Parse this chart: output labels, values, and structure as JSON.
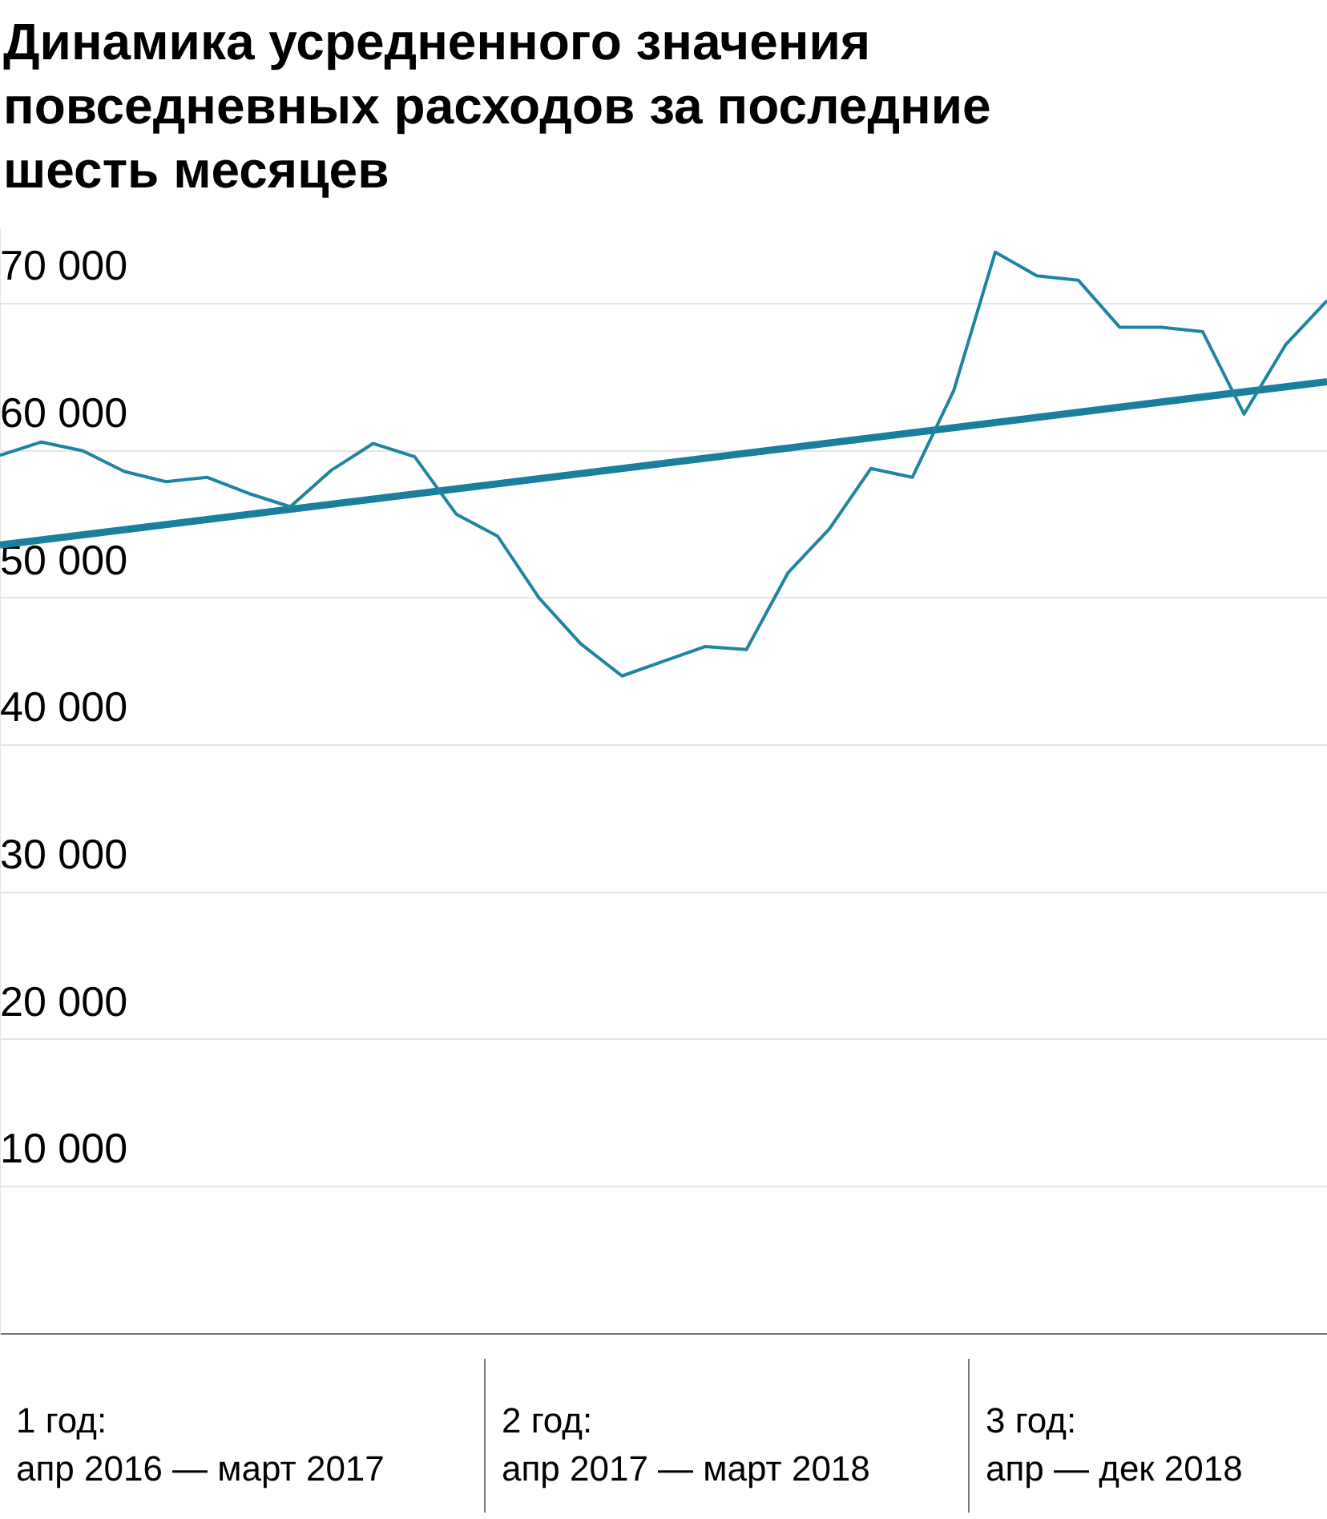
{
  "chart_data": {
    "type": "line",
    "title": "Динамика усредненного значения повседневных расходов за последние шесть месяцев",
    "categories": [
      null,
      null,
      null,
      null,
      null,
      null,
      null,
      null,
      null,
      null,
      null,
      null,
      null,
      null,
      null,
      null,
      null,
      null,
      null,
      null,
      null,
      null,
      null,
      null,
      null,
      null,
      null,
      null,
      null,
      null,
      null,
      null,
      null
    ],
    "series": [
      {
        "type": "line",
        "color": "#1f84a0",
        "values": [
          59700,
          60600,
          60000,
          58600,
          57900,
          58200,
          57100,
          56200,
          58700,
          60500,
          59600,
          55700,
          54200,
          50000,
          46900,
          44700,
          45700,
          46700,
          46500,
          51700,
          54700,
          58800,
          58200,
          64100,
          73500,
          71900,
          71600,
          68400,
          68400,
          68100,
          62500,
          67200,
          70200
        ]
      },
      {
        "type": "line",
        "color": "#1a7f9c",
        "values": [
          53600,
          null,
          null,
          null,
          null,
          null,
          null,
          null,
          null,
          null,
          null,
          null,
          null,
          null,
          null,
          null,
          null,
          null,
          null,
          null,
          null,
          null,
          null,
          null,
          null,
          null,
          null,
          null,
          null,
          null,
          null,
          null,
          64700
        ]
      }
    ],
    "ylim": [
      0,
      75000
    ],
    "yticks": [
      {
        "value": 10000,
        "label": "10 000"
      },
      {
        "value": 20000,
        "label": "20 000"
      },
      {
        "value": 30000,
        "label": "30 000"
      },
      {
        "value": 40000,
        "label": "40 000"
      },
      {
        "value": 50000,
        "label": "50 000"
      },
      {
        "value": 60000,
        "label": "60 000"
      },
      {
        "value": 70000,
        "label": "70 000"
      }
    ],
    "grid": "y",
    "tick_labels": "y",
    "annotations": [
      "1 год:\nапр 2016 — март 2017",
      "2 год:\nапр 2017 — март 2018",
      "3 год:\nапр — дек 2018"
    ]
  }
}
